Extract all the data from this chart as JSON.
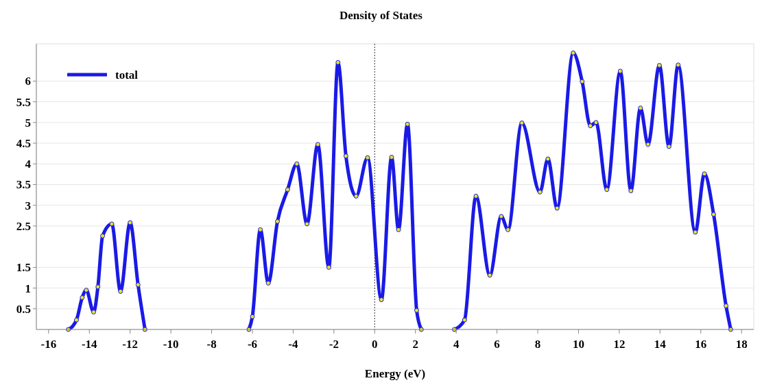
{
  "chart_data": {
    "type": "line",
    "title": "Density of States",
    "xlabel": "Energy (eV)",
    "xlim": [
      -16.6,
      18.6
    ],
    "xticks": [
      -16,
      -14,
      -12,
      -10,
      -8,
      -6,
      -4,
      -2,
      0,
      2,
      4,
      6,
      8,
      10,
      12,
      14,
      16,
      18
    ],
    "ylim": [
      0,
      6.9
    ],
    "yticks": [
      0.5,
      1,
      1.5,
      2.5,
      3,
      3.5,
      4,
      4.5,
      5,
      5.5,
      6
    ],
    "grid": "y",
    "legend": "top left",
    "marker": "circle",
    "line_style": "solid",
    "ref_lines": [
      {
        "axis": "x",
        "value": 0,
        "color": "#333333",
        "line_style": "dotted"
      }
    ],
    "series": [
      {
        "name": "total",
        "color": "#1a1ae6",
        "x": [
          -15.03,
          -14.63,
          -14.35,
          -14.15,
          -13.79,
          -13.58,
          -13.35,
          -12.9,
          -12.47,
          -12.0,
          -11.61,
          -11.27,
          -9,
          -6.17,
          -6.0,
          -5.61,
          -5.22,
          -4.77,
          -4.27,
          -3.82,
          -3.32,
          -2.79,
          -2.25,
          -1.8,
          -1.41,
          -0.91,
          -0.35,
          0.33,
          0.83,
          1.17,
          1.61,
          2.06,
          2.29,
          3,
          3.91,
          4.41,
          4.97,
          5.65,
          6.21,
          6.54,
          7.22,
          8.11,
          8.5,
          8.95,
          9.74,
          10.18,
          10.58,
          10.86,
          11.39,
          12.05,
          12.57,
          13.04,
          13.41,
          13.97,
          14.44,
          14.89,
          15.73,
          16.18,
          16.63,
          17.24,
          17.47
        ],
        "values": [
          0,
          0.23,
          0.77,
          0.95,
          0.42,
          1.03,
          2.26,
          2.55,
          0.92,
          2.58,
          1.08,
          0,
          null,
          0,
          0.31,
          2.41,
          1.12,
          2.61,
          3.38,
          4.0,
          2.55,
          4.47,
          1.5,
          6.45,
          4.19,
          3.22,
          4.15,
          0.72,
          4.16,
          2.41,
          4.96,
          0.46,
          0,
          null,
          0,
          0.23,
          3.22,
          1.31,
          2.73,
          2.41,
          4.99,
          3.32,
          4.12,
          2.93,
          6.68,
          5.99,
          4.92,
          5.0,
          3.38,
          6.24,
          3.35,
          5.35,
          4.47,
          6.38,
          4.42,
          6.39,
          2.35,
          3.76,
          2.78,
          0.57,
          0
        ]
      }
    ]
  }
}
